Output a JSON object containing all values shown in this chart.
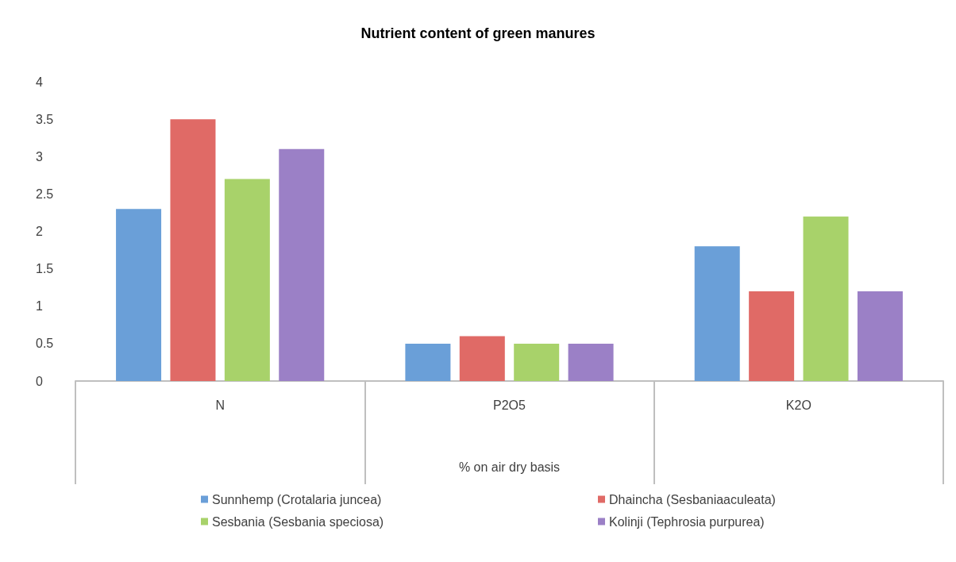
{
  "chart_data": {
    "type": "bar",
    "title": "Nutrient content of green manures",
    "xlabel": "% on air dry basis",
    "categories": [
      "N",
      "P2O5",
      "K2O"
    ],
    "series": [
      {
        "name": "Sunnhemp (Crotalaria juncea)",
        "color": "#6a9fd8",
        "values": [
          2.3,
          0.5,
          1.8
        ]
      },
      {
        "name": "Dhaincha (Sesbaniaaculeata)",
        "color": "#e06a66",
        "values": [
          3.5,
          0.6,
          1.2
        ]
      },
      {
        "name": "Sesbania (Sesbania speciosa)",
        "color": "#a8d26a",
        "values": [
          2.7,
          0.5,
          2.2
        ]
      },
      {
        "name": "Kolinji (Tephrosia purpurea)",
        "color": "#9b80c6",
        "values": [
          3.1,
          0.5,
          1.2
        ]
      }
    ],
    "ylim": [
      0,
      4
    ],
    "yticks": [
      0,
      0.5,
      1,
      1.5,
      2,
      2.5,
      3,
      3.5,
      4
    ],
    "grid": false,
    "legend": "bottom"
  }
}
